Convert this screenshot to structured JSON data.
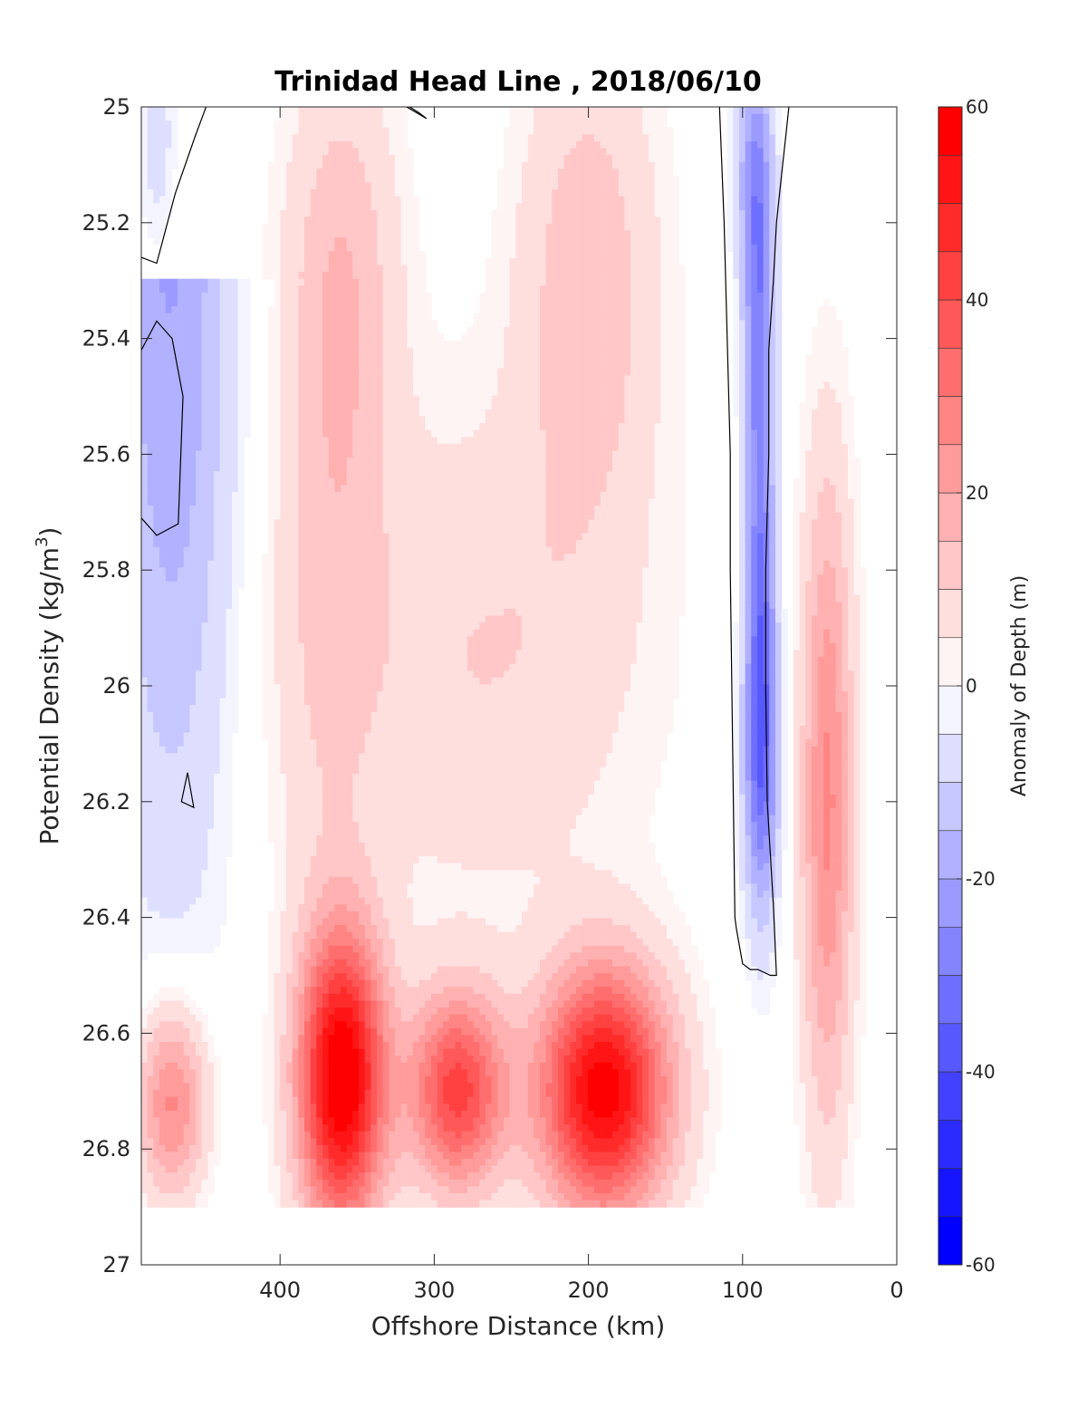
{
  "chart_data": {
    "type": "heatmap",
    "title": "Trinidad Head Line , 2018/06/10",
    "xlabel": "Offshore Distance (km)",
    "ylabel_main": "Potential Density (kg/m",
    "ylabel_sup": "3",
    "ylabel_close": ")",
    "xlim": [
      490,
      0
    ],
    "ylim": [
      25,
      27
    ],
    "y_reversed": true,
    "x_ticks": [
      400,
      300,
      200,
      100,
      0
    ],
    "x_tick_labels": [
      "400",
      "300",
      "200",
      "100",
      "0"
    ],
    "y_ticks": [
      25,
      25.2,
      25.4,
      25.6,
      25.8,
      26,
      26.2,
      26.4,
      26.6,
      26.8,
      27
    ],
    "y_tick_labels": [
      "25",
      "25.2",
      "25.4",
      "25.6",
      "25.8",
      "26",
      "26.2",
      "26.4",
      "26.6",
      "26.8",
      "27"
    ],
    "colorbar": {
      "label": "Anomaly of Depth (m)",
      "range": [
        -60,
        60
      ],
      "ticks": [
        60,
        40,
        20,
        0,
        -20,
        -40,
        -60
      ],
      "tick_labels": [
        "60",
        "40",
        "20",
        "0",
        "-20",
        "-40",
        "-60"
      ],
      "levels": 24,
      "low_color": "#0000ff",
      "mid_color": "#ffffff",
      "high_color": "#ff0000"
    },
    "data_extent": {
      "x": [
        490,
        20
      ],
      "y": [
        25,
        26.9
      ]
    },
    "anomaly_features": [
      {
        "x": 360,
        "y": 26.68,
        "sx": 20,
        "sy": 0.18,
        "amp": 62
      },
      {
        "x": 190,
        "y": 26.7,
        "sx": 30,
        "sy": 0.15,
        "amp": 58
      },
      {
        "x": 285,
        "y": 26.7,
        "sx": 22,
        "sy": 0.12,
        "amp": 42
      },
      {
        "x": 470,
        "y": 26.72,
        "sx": 16,
        "sy": 0.12,
        "amp": 28
      },
      {
        "x": 45,
        "y": 26.2,
        "sx": 12,
        "sy": 0.4,
        "amp": 26
      },
      {
        "x": 360,
        "y": 25.3,
        "sx": 26,
        "sy": 0.28,
        "amp": 14
      },
      {
        "x": 200,
        "y": 25.3,
        "sx": 32,
        "sy": 0.3,
        "amp": 14
      },
      {
        "x": 270,
        "y": 25.95,
        "sx": 75,
        "sy": 0.3,
        "amp": 10
      },
      {
        "x": 370,
        "y": 25.9,
        "sx": 25,
        "sy": 0.35,
        "amp": 8
      },
      {
        "x": 90,
        "y": 25.3,
        "sx": 7,
        "sy": 0.25,
        "amp": -26
      },
      {
        "x": 88,
        "y": 25.9,
        "sx": 7,
        "sy": 0.28,
        "amp": -28
      },
      {
        "x": 88,
        "y": 26.15,
        "sx": 9,
        "sy": 0.18,
        "amp": -18
      },
      {
        "x": 95,
        "y": 25.1,
        "sx": 10,
        "sy": 0.12,
        "amp": -10
      },
      {
        "x": 480,
        "y": 25.05,
        "sx": 8,
        "sy": 0.12,
        "amp": -8
      }
    ],
    "zero_contours": [
      {
        "x": [
          115,
          112,
          110,
          108,
          108,
          107,
          106,
          105,
          104,
          102,
          100,
          95,
          90,
          82,
          78,
          80,
          84,
          85,
          85,
          83,
          83,
          80,
          78,
          74,
          72,
          70
        ],
        "y": [
          25,
          25.2,
          25.4,
          25.6,
          25.8,
          26,
          26.2,
          26.4,
          26.42,
          26.45,
          26.48,
          26.49,
          26.49,
          26.5,
          26.5,
          26.38,
          26.2,
          26.0,
          25.8,
          25.6,
          25.42,
          25.3,
          25.2,
          25.1,
          25.05,
          25
        ]
      },
      {
        "x": [
          490,
          480,
          468,
          455,
          448
        ],
        "y": [
          25.26,
          25.27,
          25.15,
          25.05,
          25
        ]
      },
      {
        "x": [
          490,
          480,
          470,
          463,
          466,
          480,
          490
        ],
        "y": [
          25.42,
          25.37,
          25.4,
          25.5,
          25.72,
          25.74,
          25.71
        ]
      },
      {
        "x": [
          460,
          456,
          464,
          460
        ],
        "y": [
          26.15,
          26.21,
          26.2,
          26.15
        ]
      },
      {
        "x": [
          318,
          305,
          310,
          316,
          318
        ],
        "y": [
          25,
          25.02,
          25.01,
          25.0,
          25
        ]
      }
    ]
  }
}
